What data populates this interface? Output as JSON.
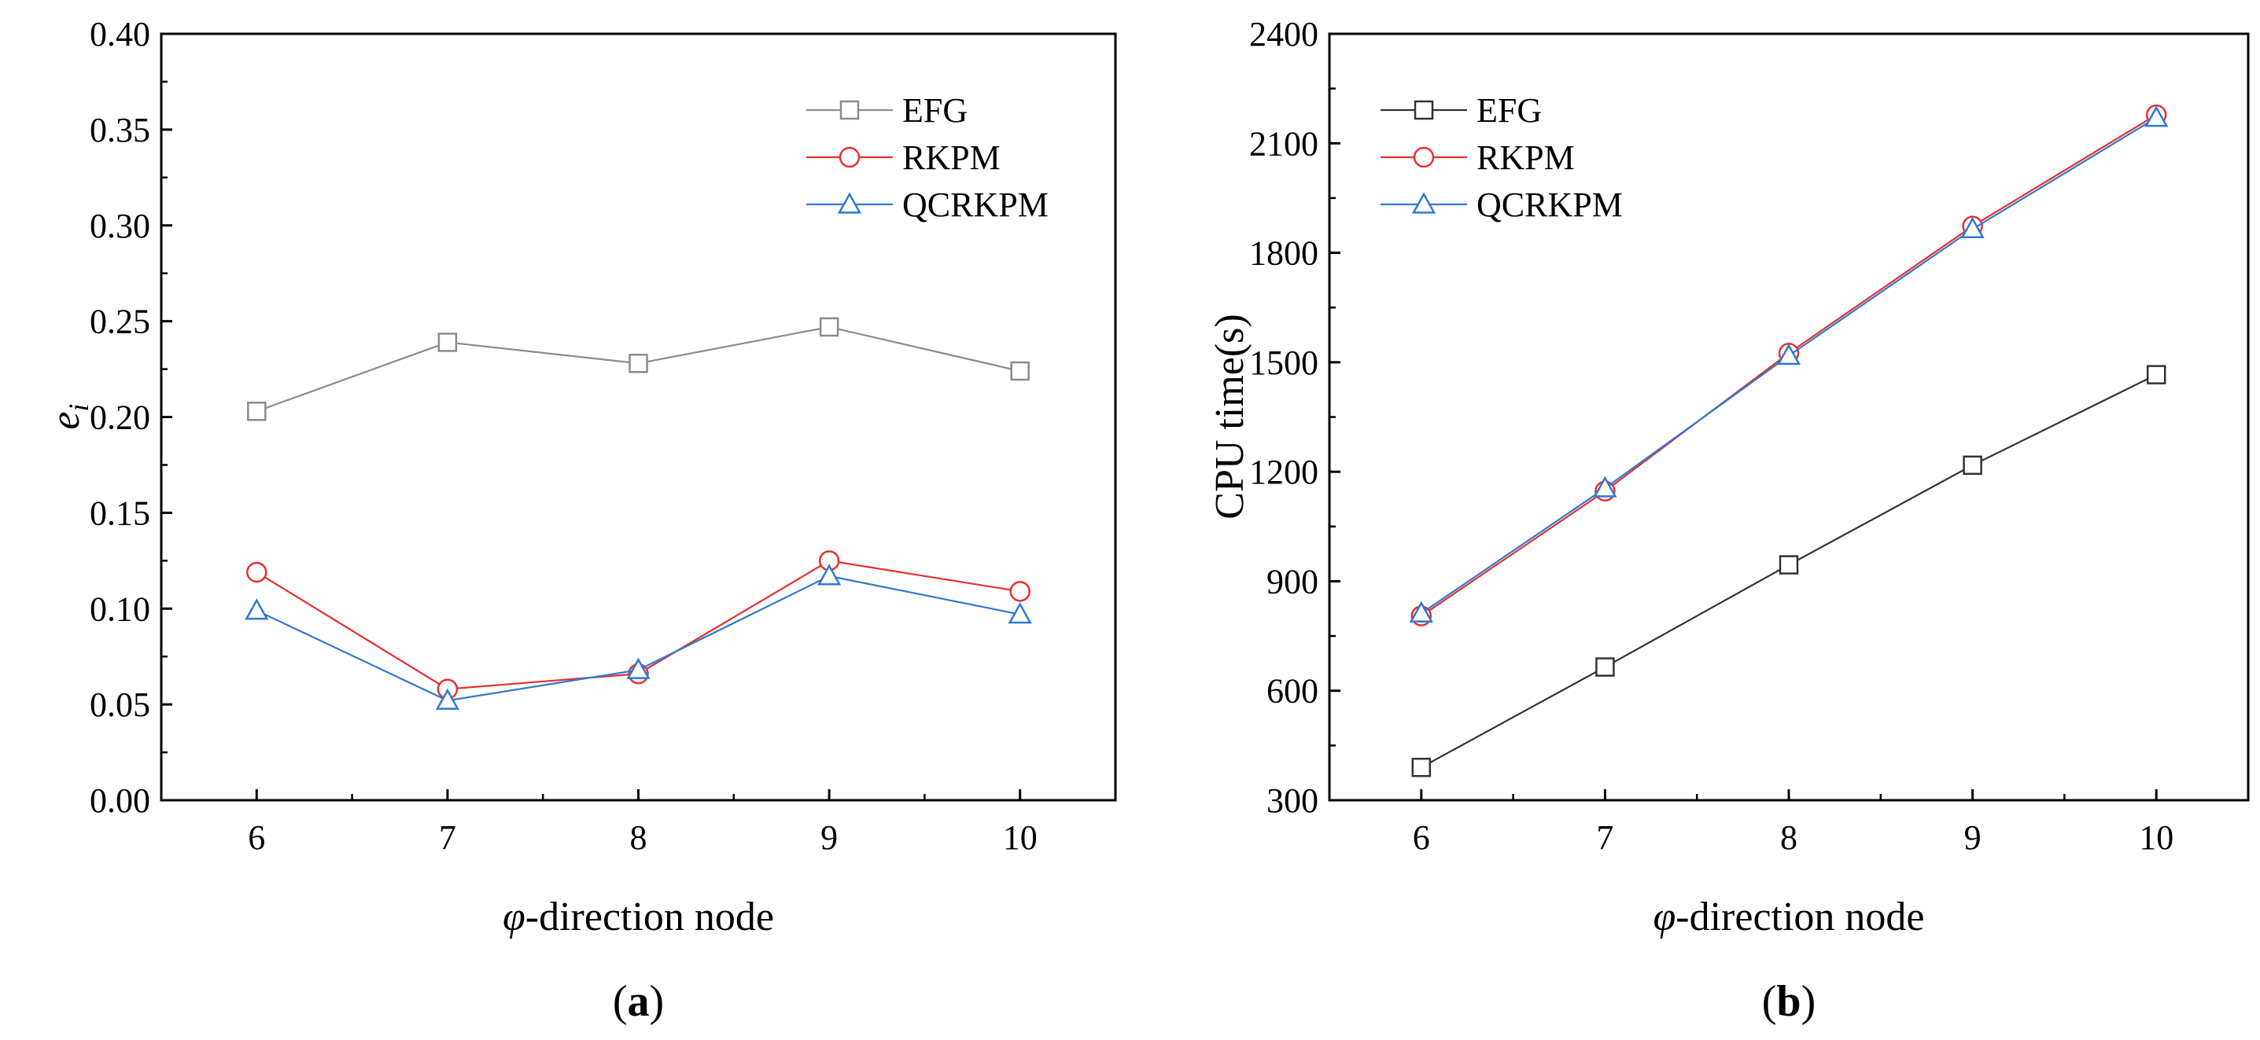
{
  "chart_data": [
    {
      "type": "line",
      "panel_label": "(a)",
      "panel_letter": "a",
      "xlabel": "-direction node",
      "xlabel_symbol": "φ",
      "ylabel": "e",
      "ylabel_sub": "i",
      "x": [
        6,
        7,
        8,
        9,
        10
      ],
      "x_ticks": [
        "6",
        "7",
        "8",
        "9",
        "10"
      ],
      "xlim": [
        5.5,
        10.5
      ],
      "ylim": [
        0,
        0.4
      ],
      "y_ticks": [
        "0.00",
        "0.05",
        "0.10",
        "0.15",
        "0.20",
        "0.25",
        "0.30",
        "0.35",
        "0.40"
      ],
      "legend": "top-right",
      "series": [
        {
          "name": "EFG",
          "marker": "square",
          "color": "#8c8c8c",
          "values": [
            0.203,
            0.239,
            0.228,
            0.247,
            0.224
          ]
        },
        {
          "name": "RKPM",
          "marker": "circle",
          "color": "#e8302f",
          "values": [
            0.119,
            0.058,
            0.066,
            0.125,
            0.109
          ]
        },
        {
          "name": "QCRKPM",
          "marker": "triangle",
          "color": "#2f78d4",
          "values": [
            0.099,
            0.052,
            0.068,
            0.117,
            0.097
          ]
        }
      ]
    },
    {
      "type": "line",
      "panel_label": "(b)",
      "panel_letter": "b",
      "xlabel": "-direction node",
      "xlabel_symbol": "φ",
      "ylabel": "CPU time(s)",
      "x": [
        6,
        7,
        8,
        9,
        10
      ],
      "x_ticks": [
        "6",
        "7",
        "8",
        "9",
        "10"
      ],
      "xlim": [
        5.5,
        10.5
      ],
      "ylim": [
        300,
        2400
      ],
      "y_ticks": [
        "300",
        "600",
        "900",
        "1200",
        "1500",
        "1800",
        "2100",
        "2400"
      ],
      "legend": "top-left",
      "series": [
        {
          "name": "EFG",
          "marker": "square",
          "color": "#333333",
          "values": [
            390,
            665,
            945,
            1218,
            1466
          ]
        },
        {
          "name": "RKPM",
          "marker": "circle",
          "color": "#e8302f",
          "values": [
            805,
            1147,
            1525,
            1873,
            2178
          ]
        },
        {
          "name": "QCRKPM",
          "marker": "triangle",
          "color": "#2f78d4",
          "values": [
            812,
            1155,
            1518,
            1865,
            2170
          ]
        }
      ]
    }
  ]
}
